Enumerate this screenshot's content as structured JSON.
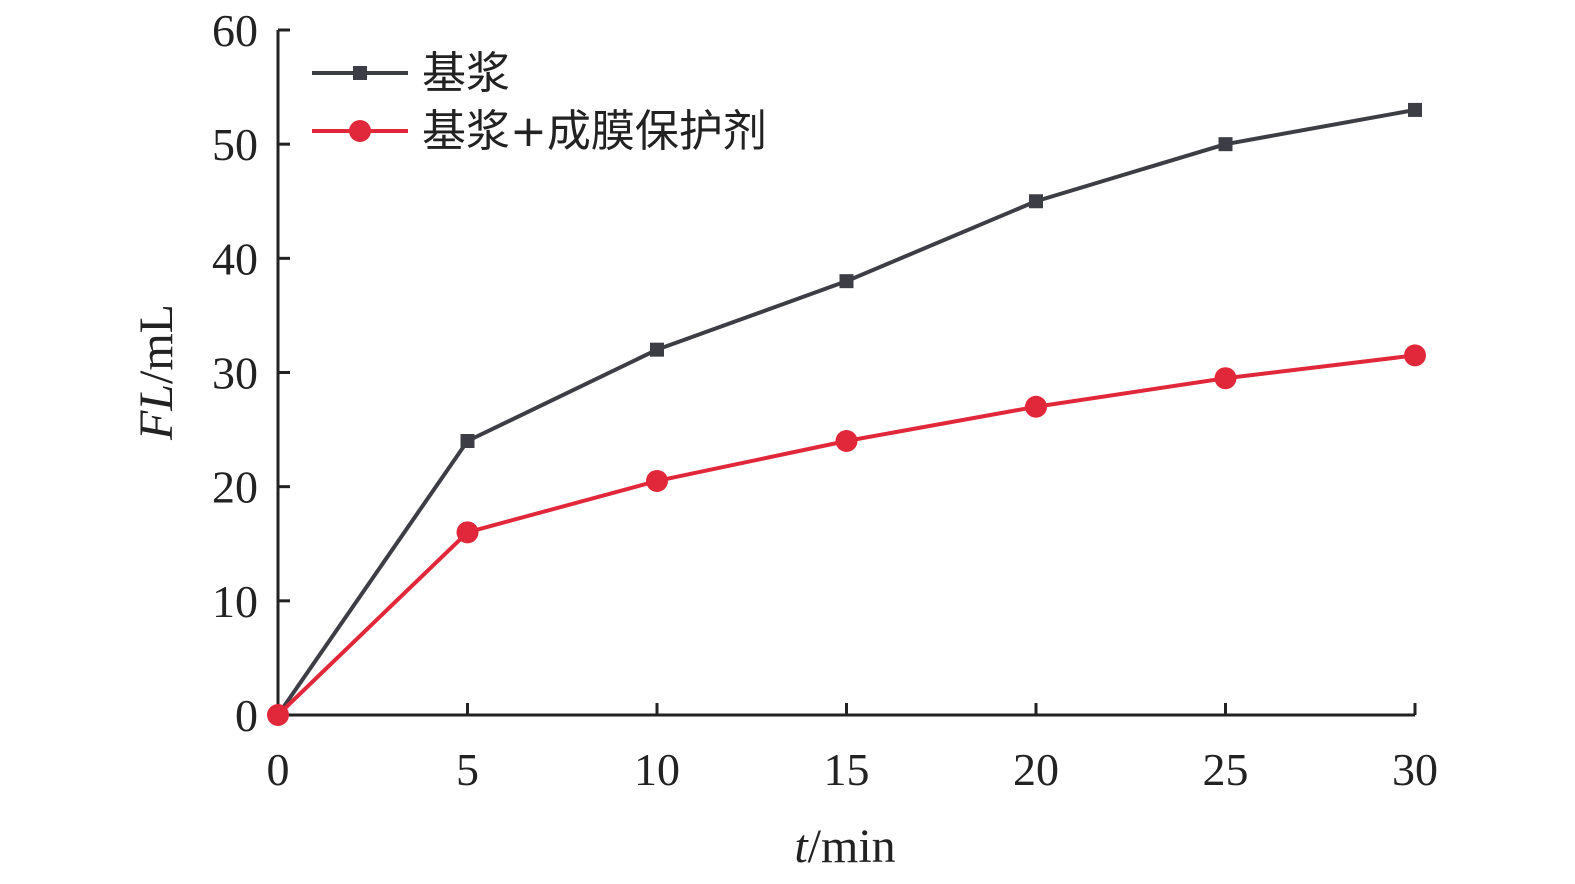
{
  "chart_data": {
    "type": "line",
    "title": "",
    "xlabel": {
      "var": "t",
      "unit": "/min"
    },
    "ylabel": {
      "var": "FL",
      "unit": "/mL"
    },
    "xlim": [
      0,
      30
    ],
    "ylim": [
      0,
      60
    ],
    "x_ticks": [
      0,
      5,
      10,
      15,
      20,
      25,
      30
    ],
    "y_ticks": [
      0,
      10,
      20,
      30,
      40,
      50,
      60
    ],
    "grid": false,
    "legend_position": "top-left",
    "x": [
      0,
      5,
      10,
      15,
      20,
      25,
      30
    ],
    "series": [
      {
        "name": "基浆",
        "values": [
          0,
          24,
          32,
          38,
          45,
          50,
          53
        ],
        "color": "#3d3d45",
        "marker": "square"
      },
      {
        "name": "基浆+成膜保护剂",
        "values": [
          0,
          16,
          20.5,
          24,
          27,
          29.5,
          31.5
        ],
        "color": "#e0283a",
        "marker": "circle"
      }
    ]
  }
}
